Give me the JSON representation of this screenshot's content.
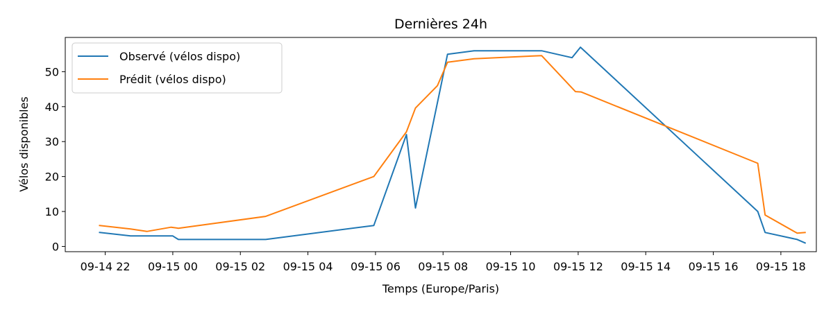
{
  "chart_data": {
    "type": "line",
    "title": "Dernières 24h",
    "xlabel": "Temps (Europe/Paris)",
    "ylabel": "Vélos disponibles",
    "xlim": [
      "2024-09-14T20:49",
      "2024-09-15T19:03"
    ],
    "ylim": [
      -1.5,
      59.8
    ],
    "x_ticks": [
      "2024-09-14T22:00",
      "2024-09-15T00:00",
      "2024-09-15T02:00",
      "2024-09-15T04:00",
      "2024-09-15T06:00",
      "2024-09-15T08:00",
      "2024-09-15T10:00",
      "2024-09-15T12:00",
      "2024-09-15T14:00",
      "2024-09-15T16:00",
      "2024-09-15T18:00"
    ],
    "x_tick_labels": [
      "09-14 22",
      "09-15 00",
      "09-15 02",
      "09-15 04",
      "09-15 06",
      "09-15 08",
      "09-15 10",
      "09-15 12",
      "09-15 14",
      "09-15 16",
      "09-15 18"
    ],
    "y_ticks": [
      0,
      10,
      20,
      30,
      40,
      50
    ],
    "grid": false,
    "legend_position": "upper-left",
    "series": [
      {
        "name": "Observé (vélos dispo)",
        "color": "#1f77b4",
        "points": [
          [
            "2024-09-14T21:50",
            4
          ],
          [
            "2024-09-14T22:45",
            3
          ],
          [
            "2024-09-14T23:50",
            3
          ],
          [
            "2024-09-15T00:00",
            3
          ],
          [
            "2024-09-15T00:10",
            2
          ],
          [
            "2024-09-15T02:45",
            2
          ],
          [
            "2024-09-15T05:57",
            6
          ],
          [
            "2024-09-15T06:55",
            32
          ],
          [
            "2024-09-15T07:11",
            11
          ],
          [
            "2024-09-15T08:08",
            55
          ],
          [
            "2024-09-15T08:55",
            56
          ],
          [
            "2024-09-15T10:55",
            56
          ],
          [
            "2024-09-15T11:49",
            54
          ],
          [
            "2024-09-15T12:04",
            57
          ],
          [
            "2024-09-15T17:19",
            10
          ],
          [
            "2024-09-15T17:32",
            4
          ],
          [
            "2024-09-15T18:29",
            2
          ],
          [
            "2024-09-15T18:43",
            1
          ]
        ]
      },
      {
        "name": "Prédit (vélos dispo)",
        "color": "#ff7f0e",
        "points": [
          [
            "2024-09-14T21:50",
            6
          ],
          [
            "2024-09-14T22:45",
            5
          ],
          [
            "2024-09-14T23:14",
            4.3
          ],
          [
            "2024-09-14T23:57",
            5.5
          ],
          [
            "2024-09-15T00:10",
            5.2
          ],
          [
            "2024-09-15T02:45",
            8.6
          ],
          [
            "2024-09-15T05:57",
            20
          ],
          [
            "2024-09-15T06:55",
            32.8
          ],
          [
            "2024-09-15T07:11",
            39.6
          ],
          [
            "2024-09-15T07:50",
            46
          ],
          [
            "2024-09-15T08:08",
            52.7
          ],
          [
            "2024-09-15T08:55",
            53.7
          ],
          [
            "2024-09-15T10:55",
            54.6
          ],
          [
            "2024-09-15T11:55",
            44.3
          ],
          [
            "2024-09-15T12:05",
            44.2
          ],
          [
            "2024-09-15T17:19",
            23.8
          ],
          [
            "2024-09-15T17:32",
            9
          ],
          [
            "2024-09-15T18:29",
            3.8
          ],
          [
            "2024-09-15T18:43",
            4
          ]
        ]
      }
    ]
  }
}
